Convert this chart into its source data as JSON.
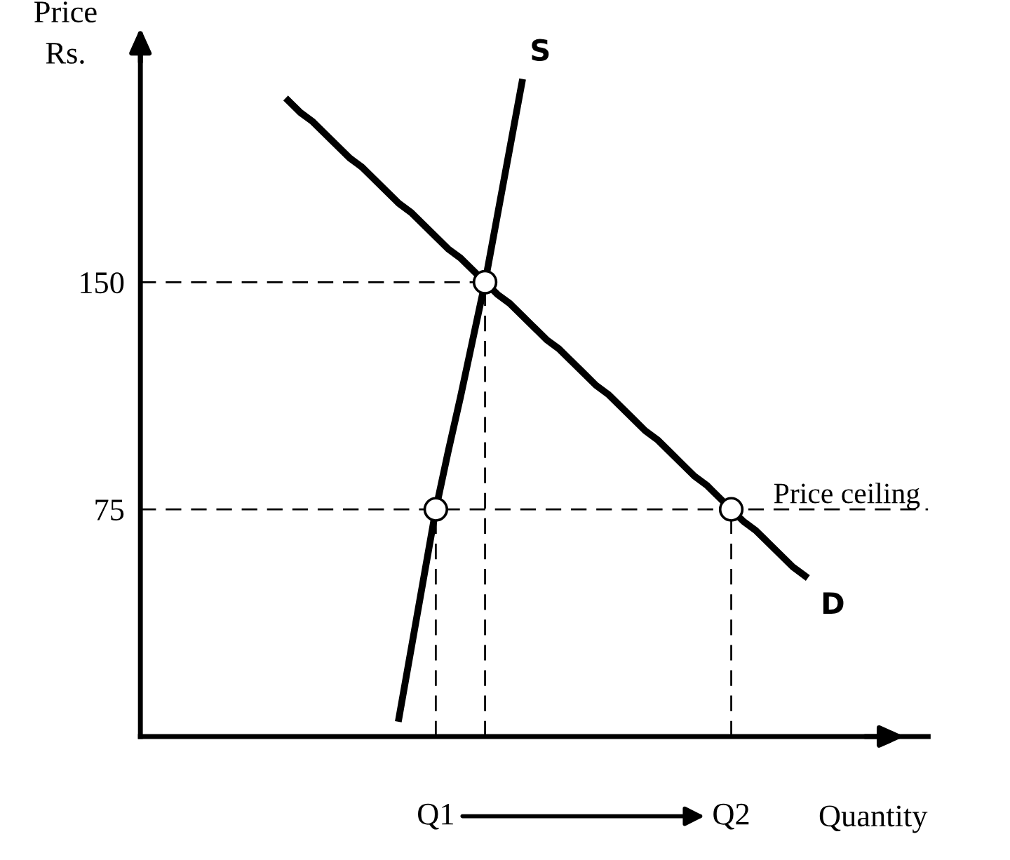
{
  "chart_data": {
    "type": "line",
    "ylabel": "Price\nRs.",
    "xlabel": "Quantity",
    "ylim": [
      0,
      225
    ],
    "yticks": [
      75,
      150
    ],
    "categories": [
      null,
      null,
      null,
      null,
      null,
      null,
      null,
      null,
      null,
      null,
      null,
      null,
      null,
      null,
      null,
      null,
      null,
      null,
      null,
      null,
      null,
      null,
      null,
      null,
      "Q1",
      null,
      null,
      null,
      null,
      null,
      null,
      null,
      null,
      null,
      null,
      null,
      null,
      null,
      null,
      null,
      null,
      null,
      null,
      null,
      null,
      null,
      null,
      null,
      "Q2",
      null,
      null,
      null,
      null,
      null,
      null,
      null,
      null,
      null,
      null,
      null,
      null,
      null,
      null,
      null,
      null
    ],
    "series": [
      {
        "name": "S",
        "color": "#000000",
        "values": [
          null,
          null,
          null,
          null,
          null,
          null,
          null,
          null,
          null,
          null,
          null,
          null,
          null,
          null,
          null,
          null,
          null,
          null,
          null,
          null,
          null,
          6,
          29,
          52,
          75,
          94,
          112,
          131,
          150,
          172,
          194,
          216,
          null,
          null,
          null,
          null,
          null,
          null,
          null,
          null,
          null,
          null,
          null,
          null,
          null,
          null,
          null,
          null,
          null,
          null,
          null,
          null,
          null,
          null,
          null,
          null,
          null,
          null,
          null,
          null,
          null,
          null,
          null,
          null,
          null
        ]
      },
      {
        "name": "D",
        "color": "#000000",
        "values": [
          null,
          null,
          null,
          null,
          null,
          null,
          null,
          null,
          null,
          null,
          null,
          null,
          210,
          206,
          203,
          199,
          195,
          191,
          188,
          184,
          180,
          176,
          173,
          169,
          165,
          161,
          158,
          154,
          150,
          146,
          143,
          139,
          135,
          131,
          128,
          124,
          120,
          116,
          113,
          109,
          105,
          101,
          98,
          94,
          90,
          86,
          83,
          79,
          75,
          71,
          68,
          64,
          60,
          56,
          53,
          null,
          null,
          null,
          null,
          null,
          null,
          null,
          null,
          null,
          null
        ]
      },
      {
        "color": "#000000",
        "line_style": "dashed",
        "values": [
          150,
          150,
          150,
          150,
          150,
          150,
          150,
          150,
          150,
          150,
          150,
          150,
          150,
          150,
          150,
          150,
          150,
          150,
          150,
          150,
          150,
          150,
          150,
          150,
          150,
          150,
          150,
          150,
          150,
          null,
          null,
          null,
          null,
          null,
          null,
          null,
          null,
          null,
          null,
          null,
          null,
          null,
          null,
          null,
          null,
          null,
          null,
          null,
          null,
          null,
          null,
          null,
          null,
          null,
          null,
          null,
          null,
          null,
          null,
          null,
          null,
          null,
          null,
          null,
          null
        ]
      },
      {
        "type": "lollipop",
        "marker": "circle",
        "line_style": "dashed",
        "color": "#ffffff",
        "values": [
          null,
          null,
          null,
          null,
          null,
          null,
          null,
          null,
          null,
          null,
          null,
          null,
          null,
          null,
          null,
          null,
          null,
          null,
          null,
          null,
          null,
          null,
          null,
          null,
          75,
          null,
          null,
          null,
          150,
          null,
          null,
          null,
          null,
          null,
          null,
          null,
          null,
          null,
          null,
          null,
          null,
          null,
          null,
          null,
          null,
          null,
          null,
          null,
          75,
          null,
          null,
          null,
          null,
          null,
          null,
          null,
          null,
          null,
          null,
          null,
          null,
          null,
          null,
          null,
          null
        ]
      }
    ],
    "ref_lines": [
      {
        "axis": "y",
        "value": 75,
        "label": "Price ceiling",
        "color": "#000000",
        "line_style": "dashed"
      }
    ]
  }
}
